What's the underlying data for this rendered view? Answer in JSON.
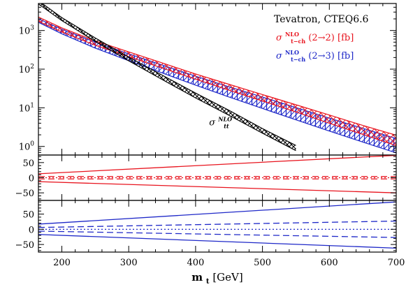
{
  "chart_data": {
    "type": "line",
    "x": [
      160,
      200,
      250,
      300,
      350,
      400,
      450,
      500,
      550,
      600,
      650,
      700
    ],
    "xlim": [
      165,
      700
    ],
    "xticks": [
      200,
      300,
      400,
      500,
      600,
      700
    ],
    "xlabel": "m",
    "xlabel_sub": "t",
    "xlabel_unit": " [GeV]",
    "colors": {
      "red": "#e8141e",
      "blue": "#1e28c8",
      "black": "#000000"
    },
    "main": {
      "log_y": true,
      "ylim": [
        0.6,
        5000
      ],
      "ytick_labels": [
        {
          "mantissa": "10",
          "exp": "0",
          "value": 1
        },
        {
          "mantissa": "10",
          "exp": "1",
          "value": 10
        },
        {
          "mantissa": "10",
          "exp": "2",
          "value": 100
        },
        {
          "mantissa": "10",
          "exp": "3",
          "value": 1000
        }
      ],
      "series": [
        {
          "key": "ttbar",
          "color": "black",
          "x": [
            160,
            200,
            250,
            300,
            350,
            400,
            450,
            500,
            550
          ],
          "upper": [
            6800,
            2150,
            640,
            205,
            70,
            24,
            8.6,
            2.9,
            1.06
          ],
          "lower": [
            5600,
            1800,
            520,
            164,
            54,
            18,
            6.4,
            2.2,
            0.78
          ]
        },
        {
          "key": "tch22",
          "color": "red",
          "x": [
            160,
            200,
            250,
            300,
            350,
            400,
            450,
            500,
            550,
            600,
            650,
            700
          ],
          "upper": [
            2450,
            1170,
            540,
            280,
            145,
            75,
            40.5,
            22,
            12,
            6.5,
            3.5,
            1.95
          ],
          "lower": [
            1900,
            910,
            415,
            210,
            107,
            55,
            28.5,
            15,
            7.8,
            4.0,
            2.05,
            1.05
          ]
        },
        {
          "key": "tch23",
          "color": "blue",
          "x": [
            160,
            200,
            250,
            300,
            350,
            400,
            450,
            500,
            550,
            600,
            650,
            700
          ],
          "upper": [
            2200,
            1080,
            500,
            250,
            128,
            66,
            35,
            19,
            10.2,
            5.4,
            2.95,
            1.6
          ],
          "lower": [
            1800,
            820,
            350,
            165,
            80,
            38.5,
            19,
            9.6,
            4.9,
            2.5,
            1.3,
            0.68
          ]
        }
      ],
      "annotation": {
        "text": "σ",
        "sup": "NLO",
        "sub": "tt",
        "at": [
          462,
          3.5
        ]
      }
    },
    "ratio_red": {
      "ylim": [
        -75,
        75
      ],
      "yticks": [
        -50,
        0,
        50
      ],
      "ytick_labels": [
        "−50",
        "0",
        "50"
      ],
      "lines": [
        {
          "style": "solid",
          "y0": 13,
          "y1": 74
        },
        {
          "style": "solid",
          "y0": -13,
          "y1": -50
        },
        {
          "style": "dashed",
          "y0": 4,
          "y1": 4
        },
        {
          "style": "dashed",
          "y0": -4,
          "y1": -4
        },
        {
          "style": "dotted",
          "y0": 0,
          "y1": 0
        }
      ]
    },
    "ratio_blue": {
      "ylim": [
        -75,
        95
      ],
      "yticks": [
        -50,
        0,
        50
      ],
      "ytick_labels": [
        "−50",
        "0",
        "50"
      ],
      "lines": [
        {
          "style": "solid",
          "y0": 17,
          "y1": 90
        },
        {
          "style": "solid",
          "y0": -17,
          "y1": -62
        },
        {
          "style": "dashed",
          "y0": 6,
          "y1": 27
        },
        {
          "style": "dashed",
          "y0": -6,
          "y1": -27
        },
        {
          "style": "dotted",
          "y0": 0,
          "y1": 0
        }
      ]
    },
    "legend": {
      "placement": "top-right",
      "title": "Tevatron, CTEQ6.6",
      "entries": [
        {
          "sigma": "σ",
          "sup": "NLO",
          "sub": "t−ch",
          "text": "(2→2) [fb]",
          "color": "red"
        },
        {
          "sigma": "σ",
          "sup": "NLO",
          "sub": "t−ch",
          "text": "(2→3) [fb]",
          "color": "blue"
        }
      ]
    }
  }
}
